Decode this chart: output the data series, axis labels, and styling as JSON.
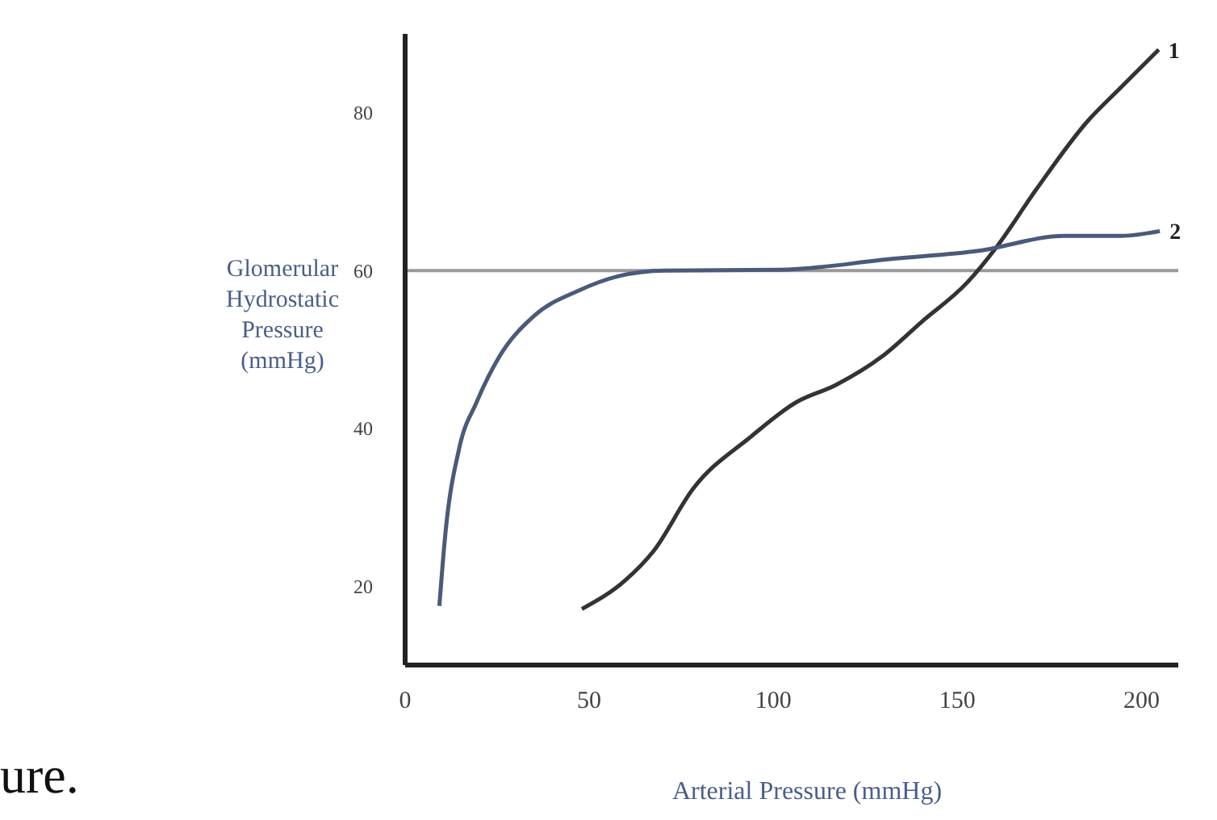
{
  "chart_data": {
    "type": "line",
    "xlabel": "Arterial Pressure (mmHg)",
    "ylabel": "Glomerular Hydrostatic Pressure (mmHg)",
    "annotations": [
      "ure."
    ],
    "xlim": [
      0,
      210
    ],
    "xticks": [
      0,
      50,
      100,
      150,
      200
    ],
    "ylim": [
      10,
      90
    ],
    "yticks": [
      20,
      40,
      60,
      80
    ],
    "grid": false,
    "legend": false,
    "marker": "none",
    "line_style": "solid",
    "ref_lines": [
      {
        "axis": "y",
        "value": 60,
        "color": "#999999"
      }
    ],
    "series": [
      {
        "name": "1",
        "color": "#333333",
        "x": [
          48,
          59.7,
          67.4,
          78.3,
          93.8,
          106.2,
          117,
          129.5,
          140.3,
          152.7,
          160.5,
          171.3,
          185.3,
          194.6,
          204.7
        ],
        "values": [
          17.1,
          20.7,
          24.4,
          32.4,
          38.9,
          43.3,
          45.5,
          49.1,
          53.5,
          58.5,
          62.9,
          70.2,
          78.9,
          83.3,
          88
        ]
      },
      {
        "name": "2",
        "color": "#4a5a7a",
        "x": [
          9.3,
          10.9,
          14.7,
          19.4,
          25.6,
          34.9,
          47.3,
          58,
          70.5,
          101.6,
          132.6,
          155.8,
          179,
          194.6,
          205
        ],
        "values": [
          17.5,
          26.5,
          37.5,
          43.3,
          49.1,
          54.2,
          57.5,
          59.3,
          60,
          60.1,
          61.5,
          62.5,
          64.4,
          64.4,
          65
        ]
      }
    ]
  }
}
